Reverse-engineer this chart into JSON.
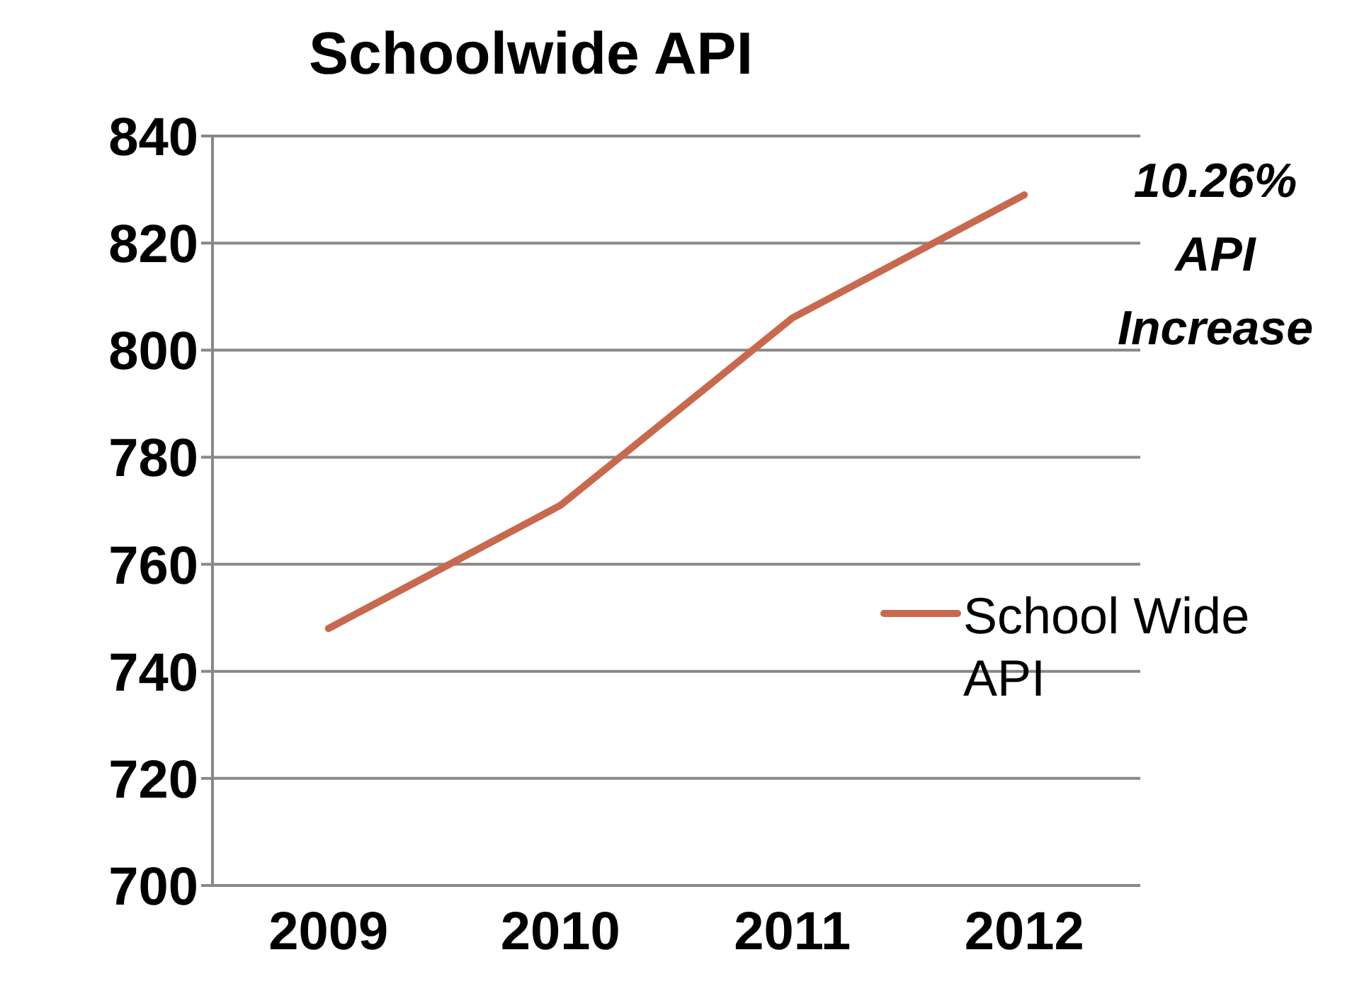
{
  "chart_data": {
    "type": "line",
    "title": "Schoolwide API",
    "categories": [
      "2009",
      "2010",
      "2011",
      "2012"
    ],
    "series": [
      {
        "name": "School Wide API",
        "color": "#c8694e",
        "values": [
          748,
          771,
          806,
          829
        ]
      }
    ],
    "ylim": [
      700,
      840
    ],
    "yticks": [
      700,
      720,
      740,
      760,
      780,
      800,
      820,
      840
    ],
    "grid": "y",
    "legend": "right",
    "marker": "none",
    "annotations": [
      "10.26% API Increase"
    ]
  }
}
